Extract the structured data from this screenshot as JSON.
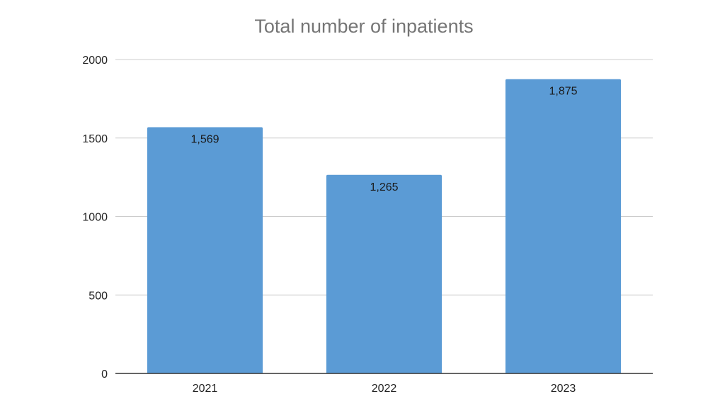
{
  "chart_data": {
    "type": "bar",
    "title": "Total number of inpatients",
    "xlabel": "",
    "ylabel": "",
    "categories": [
      "2021",
      "2022",
      "2023"
    ],
    "values": [
      1569,
      1265,
      1875
    ],
    "data_labels": [
      "1,569",
      "1,265",
      "1,875"
    ],
    "ylim": [
      0,
      2000
    ],
    "yticks": [
      0,
      500,
      1000,
      1500,
      2000
    ],
    "ytick_labels": [
      "0",
      "500",
      "1000",
      "1500",
      "2000"
    ],
    "grid": true,
    "legend": "none",
    "colors": {
      "bar": "#5b9bd5",
      "grid": "#cccccc",
      "axis": "#333333",
      "title": "#757575"
    }
  }
}
